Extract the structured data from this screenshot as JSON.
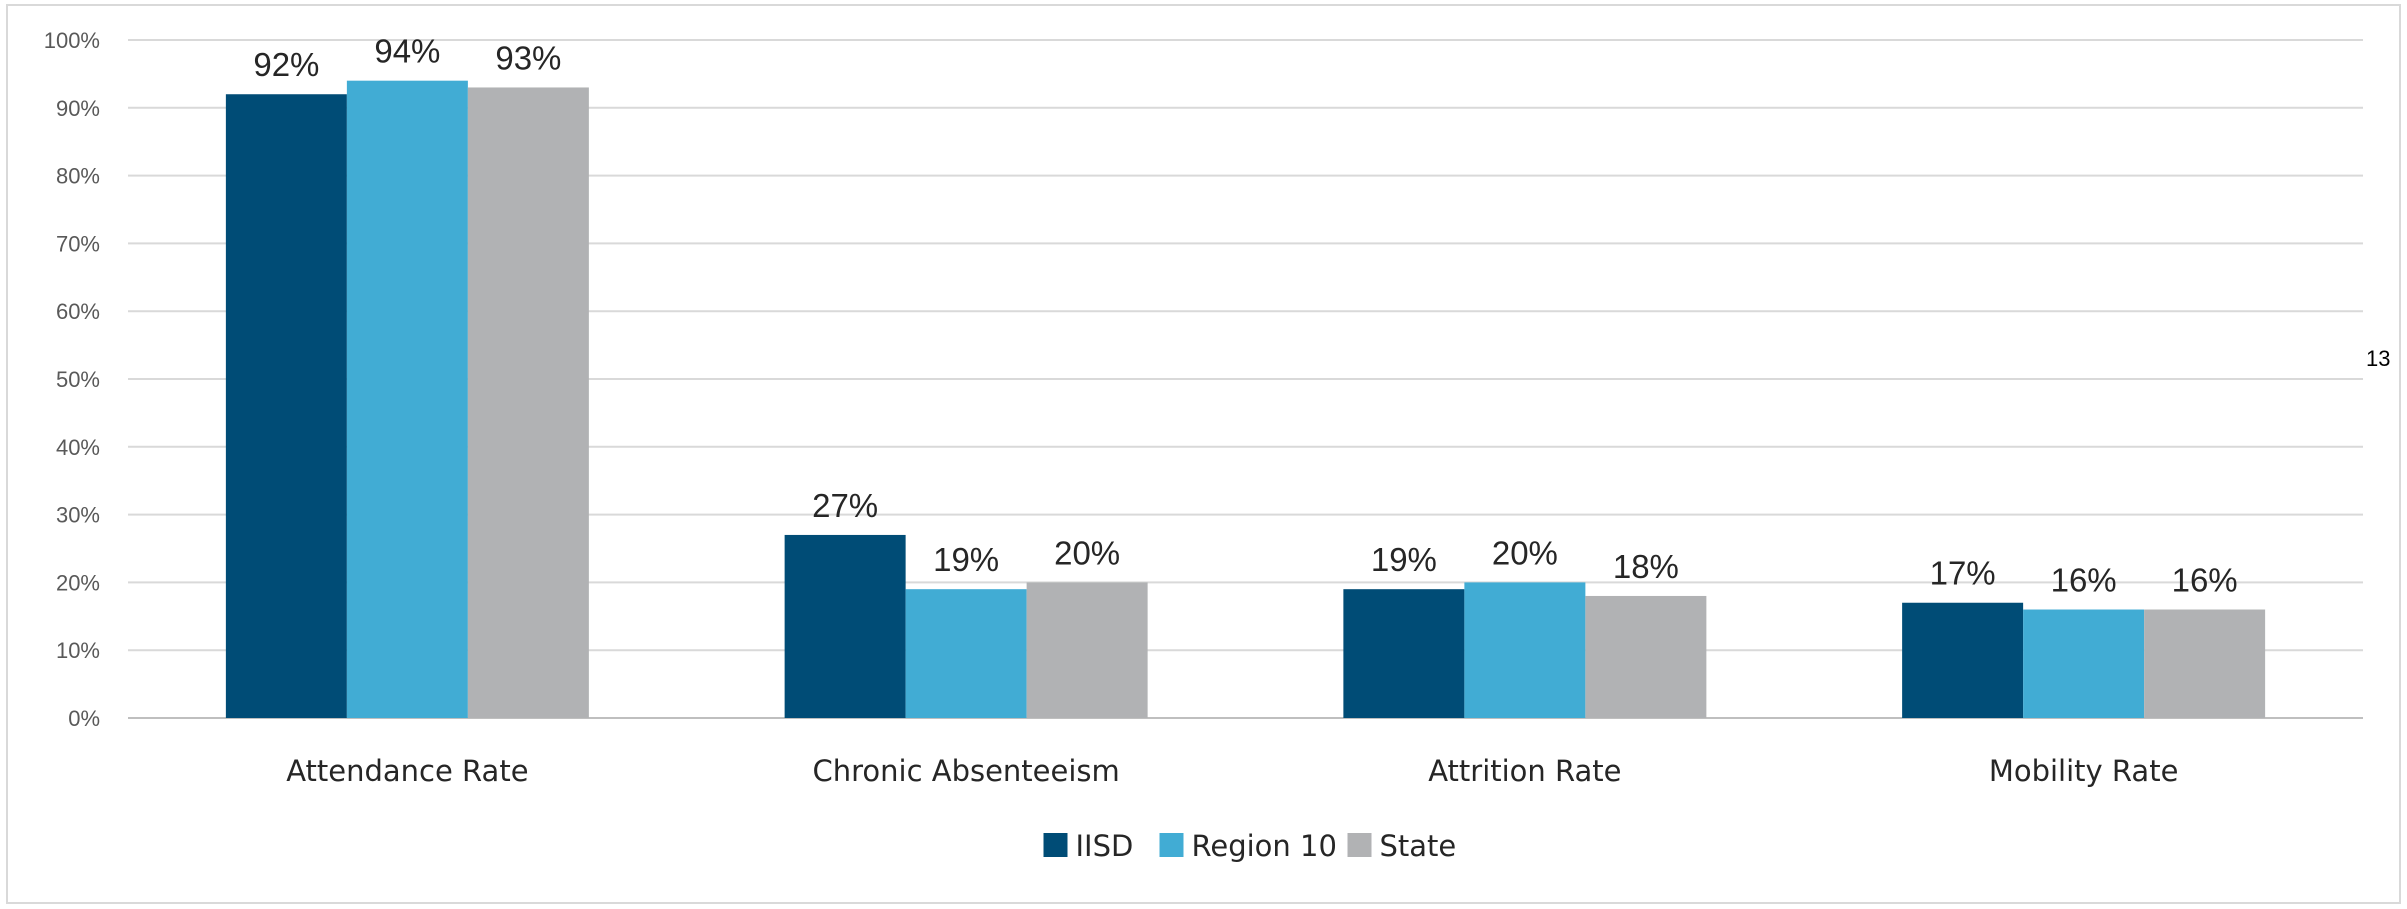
{
  "chart_data": {
    "type": "bar",
    "categories": [
      "Attendance Rate",
      "Chronic Absenteeism",
      "Attrition Rate",
      "Mobility Rate"
    ],
    "series": [
      {
        "name": "IISD",
        "values": [
          92,
          27,
          19,
          17
        ],
        "labels": [
          "92%",
          "27%",
          "19%",
          "17%"
        ],
        "color": "#004c76"
      },
      {
        "name": "Region 10",
        "values": [
          94,
          19,
          20,
          16
        ],
        "labels": [
          "94%",
          "19%",
          "20%",
          "16%"
        ],
        "color": "#41acd4"
      },
      {
        "name": "State",
        "values": [
          93,
          20,
          18,
          16
        ],
        "labels": [
          "93%",
          "20%",
          "18%",
          "16%"
        ],
        "color": "#b1b2b4"
      }
    ],
    "yticks": [
      0,
      10,
      20,
      30,
      40,
      50,
      60,
      70,
      80,
      90,
      100
    ],
    "ytick_labels": [
      "0%",
      "10%",
      "20%",
      "30%",
      "40%",
      "50%",
      "60%",
      "70%",
      "80%",
      "90%",
      "100%"
    ],
    "ylim": [
      0,
      100
    ],
    "grid": true,
    "legend_position": "bottom-center",
    "title": "",
    "xlabel": "",
    "ylabel": ""
  },
  "page_number": "13",
  "colors": {
    "grid": "#d9d9d9",
    "axis": "#bfbfbf"
  }
}
